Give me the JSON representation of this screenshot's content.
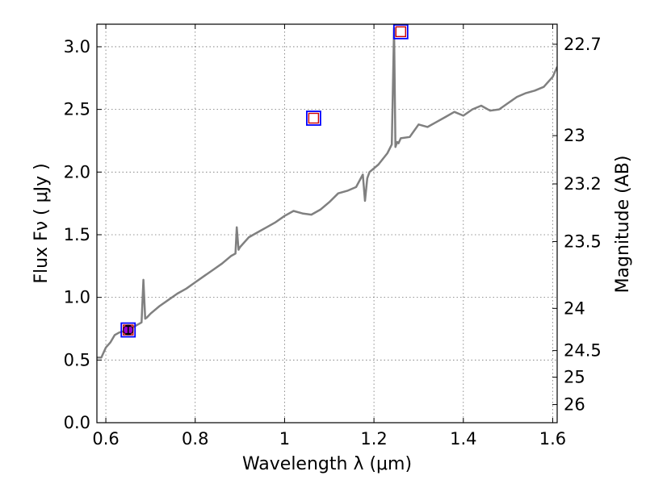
{
  "chart_data": {
    "type": "line",
    "xlabel": "Wavelength  λ (μm)",
    "ylabel": "Flux  Fν  ( μJy )",
    "y2label": "Magnitude (AB)",
    "xlim": [
      0.58,
      1.61
    ],
    "ylim": [
      0.0,
      3.18
    ],
    "grid": true,
    "x_ticks": [
      0.6,
      0.8,
      1.0,
      1.2,
      1.4,
      1.6
    ],
    "x_tick_labels": [
      "0.6",
      "0.8",
      "1",
      "1.2",
      "1.4",
      "1.6"
    ],
    "y_ticks": [
      0.0,
      0.5,
      1.0,
      1.5,
      2.0,
      2.5,
      3.0
    ],
    "y_tick_labels": [
      "0.0",
      "0.5",
      "1.0",
      "1.5",
      "2.0",
      "2.5",
      "3.0"
    ],
    "y2_ticks": [
      {
        "label": "22.7",
        "mag": 22.7
      },
      {
        "label": "23",
        "mag": 23.0
      },
      {
        "label": "23.2",
        "mag": 23.2
      },
      {
        "label": "23.5",
        "mag": 23.5
      },
      {
        "label": "24",
        "mag": 24.0
      },
      {
        "label": "24.5",
        "mag": 24.5
      },
      {
        "label": "25",
        "mag": 25.0
      },
      {
        "label": "26",
        "mag": 26.0
      }
    ],
    "spectrum": {
      "color": "#808080",
      "x": [
        0.58,
        0.59,
        0.6,
        0.61,
        0.62,
        0.63,
        0.64,
        0.65,
        0.66,
        0.67,
        0.68,
        0.684,
        0.688,
        0.692,
        0.7,
        0.72,
        0.74,
        0.76,
        0.78,
        0.8,
        0.82,
        0.84,
        0.86,
        0.88,
        0.89,
        0.893,
        0.897,
        0.9,
        0.92,
        0.94,
        0.96,
        0.98,
        1.0,
        1.02,
        1.04,
        1.06,
        1.08,
        1.1,
        1.12,
        1.14,
        1.16,
        1.175,
        1.18,
        1.185,
        1.19,
        1.21,
        1.23,
        1.24,
        1.245,
        1.248,
        1.252,
        1.255,
        1.26,
        1.28,
        1.3,
        1.32,
        1.34,
        1.36,
        1.38,
        1.4,
        1.42,
        1.44,
        1.46,
        1.48,
        1.5,
        1.52,
        1.54,
        1.56,
        1.58,
        1.6,
        1.61
      ],
      "y": [
        0.52,
        0.52,
        0.6,
        0.64,
        0.7,
        0.72,
        0.73,
        0.75,
        0.76,
        0.78,
        0.8,
        1.14,
        0.83,
        0.84,
        0.87,
        0.93,
        0.98,
        1.03,
        1.07,
        1.12,
        1.17,
        1.22,
        1.27,
        1.33,
        1.35,
        1.56,
        1.38,
        1.4,
        1.48,
        1.52,
        1.56,
        1.6,
        1.65,
        1.69,
        1.67,
        1.66,
        1.7,
        1.76,
        1.83,
        1.85,
        1.88,
        1.98,
        1.77,
        1.95,
        2.0,
        2.06,
        2.15,
        2.22,
        3.15,
        2.2,
        2.24,
        2.23,
        2.27,
        2.28,
        2.38,
        2.36,
        2.4,
        2.44,
        2.48,
        2.45,
        2.5,
        2.53,
        2.49,
        2.5,
        2.55,
        2.6,
        2.63,
        2.65,
        2.68,
        2.76,
        2.84
      ]
    },
    "photometry_squares": {
      "outer_color": "#0000ff",
      "inner_color": "#cc0000",
      "points": [
        {
          "x": 0.65,
          "y": 0.74
        },
        {
          "x": 1.065,
          "y": 2.43
        },
        {
          "x": 1.26,
          "y": 3.12
        }
      ]
    },
    "measured_point": {
      "x": 0.65,
      "y": 0.74,
      "yerr": 0.03,
      "color": "#9900cc"
    }
  }
}
